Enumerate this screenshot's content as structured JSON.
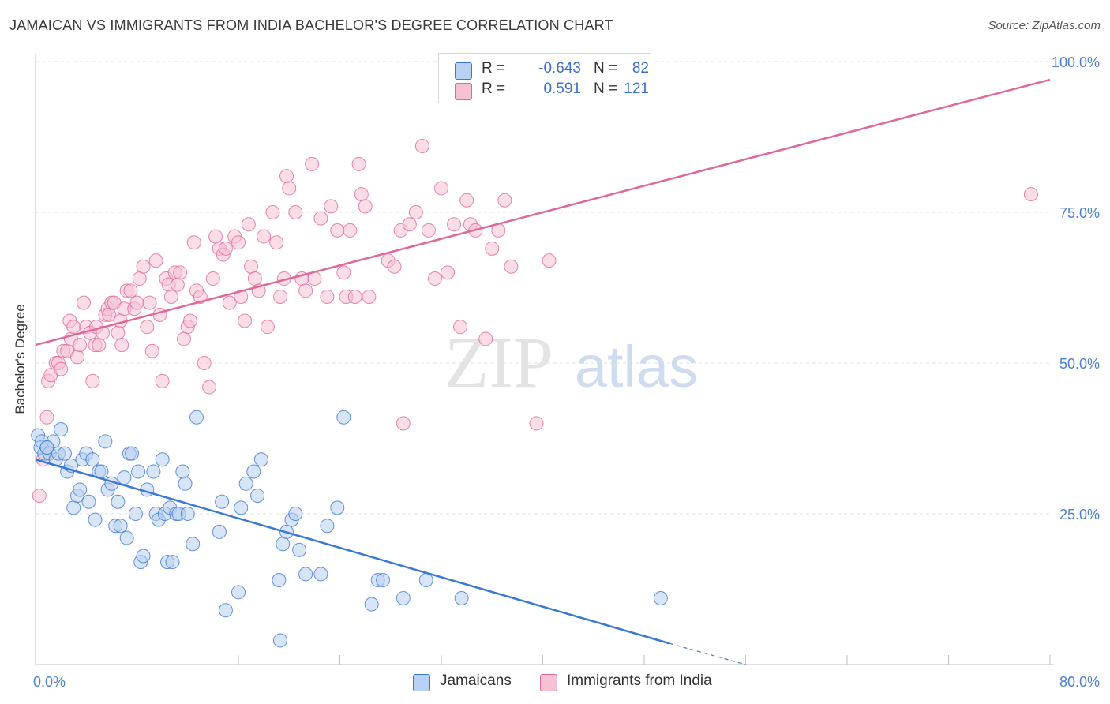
{
  "title": "JAMAICAN VS IMMIGRANTS FROM INDIA BACHELOR'S DEGREE CORRELATION CHART",
  "source": "Source: ZipAtlas.com",
  "watermark": {
    "zip": "ZIP",
    "atlas": "atlas"
  },
  "legend": {
    "rows": [
      {
        "r_label": "R =",
        "r_value": "-0.643",
        "n_label": "N =",
        "n_value": "82"
      },
      {
        "r_label": "R =",
        "r_value": "0.591",
        "n_label": "N =",
        "n_value": "121"
      }
    ]
  },
  "colors": {
    "blue": "#3a78d8",
    "blue_fill": "#b8d0f2",
    "pink": "#e0679a",
    "pink_fill": "#f7c1d4",
    "tick_text": "#4a7fd6",
    "grid": "#e2e2e2"
  },
  "chart_data": {
    "type": "scatter",
    "ylabel": "Bachelor's Degree",
    "x_tick_labels": [
      "0.0%",
      "80.0%"
    ],
    "y_tick_labels": [
      "25.0%",
      "50.0%",
      "75.0%",
      "100.0%"
    ],
    "y_ticks": [
      25,
      50,
      75,
      100
    ],
    "xlim": [
      0,
      80
    ],
    "ylim": [
      0,
      100
    ],
    "grid": true,
    "series": [
      {
        "name": "Jamaicans",
        "color": "#3a78d8",
        "R": -0.643,
        "N": 82,
        "trend": {
          "x0": 0,
          "y0": 34,
          "x1": 50,
          "y1": 3.5,
          "dash_to_x": 56,
          "dash_to_y": 0
        },
        "points": [
          [
            0.2,
            38
          ],
          [
            0.4,
            36
          ],
          [
            0.5,
            37
          ],
          [
            0.7,
            35
          ],
          [
            0.9,
            36
          ],
          [
            1.1,
            35
          ],
          [
            1.4,
            37
          ],
          [
            1.6,
            34
          ],
          [
            1.8,
            35
          ],
          [
            2.0,
            39
          ],
          [
            2.3,
            35
          ],
          [
            2.5,
            32
          ],
          [
            2.8,
            33
          ],
          [
            3.0,
            26
          ],
          [
            3.3,
            28
          ],
          [
            3.5,
            29
          ],
          [
            3.7,
            34
          ],
          [
            4.0,
            35
          ],
          [
            4.2,
            27
          ],
          [
            4.5,
            34
          ],
          [
            4.7,
            24
          ],
          [
            5.0,
            32
          ],
          [
            5.2,
            32
          ],
          [
            5.5,
            37
          ],
          [
            5.7,
            29
          ],
          [
            6.0,
            30
          ],
          [
            6.3,
            23
          ],
          [
            6.5,
            27
          ],
          [
            6.7,
            23
          ],
          [
            7.0,
            31
          ],
          [
            7.2,
            21
          ],
          [
            7.4,
            35
          ],
          [
            7.6,
            35
          ],
          [
            7.9,
            25
          ],
          [
            8.1,
            32
          ],
          [
            8.3,
            17
          ],
          [
            8.5,
            18
          ],
          [
            8.8,
            29
          ],
          [
            9.3,
            32
          ],
          [
            9.5,
            25
          ],
          [
            9.7,
            24
          ],
          [
            10.0,
            34
          ],
          [
            10.2,
            25
          ],
          [
            10.4,
            17
          ],
          [
            10.6,
            26
          ],
          [
            10.8,
            17
          ],
          [
            11.1,
            25
          ],
          [
            11.3,
            25
          ],
          [
            11.6,
            32
          ],
          [
            11.8,
            30
          ],
          [
            12.0,
            25
          ],
          [
            12.4,
            20
          ],
          [
            12.7,
            41
          ],
          [
            14.5,
            22
          ],
          [
            14.7,
            27
          ],
          [
            15.0,
            9
          ],
          [
            16.0,
            12
          ],
          [
            16.2,
            26
          ],
          [
            16.6,
            30
          ],
          [
            17.2,
            32
          ],
          [
            17.5,
            28
          ],
          [
            17.8,
            34
          ],
          [
            19.2,
            14
          ],
          [
            19.5,
            20
          ],
          [
            19.8,
            22
          ],
          [
            20.2,
            24
          ],
          [
            20.5,
            25
          ],
          [
            20.8,
            19
          ],
          [
            21.3,
            15
          ],
          [
            22.5,
            15
          ],
          [
            23.0,
            23
          ],
          [
            23.8,
            26
          ],
          [
            24.3,
            41
          ],
          [
            26.5,
            10
          ],
          [
            27.0,
            14
          ],
          [
            27.4,
            14
          ],
          [
            29.0,
            11
          ],
          [
            30.8,
            14
          ],
          [
            33.6,
            11
          ],
          [
            49.3,
            11
          ],
          [
            19.3,
            4
          ],
          [
            0.9,
            36
          ]
        ]
      },
      {
        "name": "Immigrants from India",
        "color": "#e0679a",
        "R": 0.591,
        "N": 121,
        "trend": {
          "x0": 0,
          "y0": 53,
          "x1": 80,
          "y1": 97
        },
        "points": [
          [
            0.3,
            28
          ],
          [
            0.6,
            34
          ],
          [
            0.9,
            41
          ],
          [
            1.0,
            47
          ],
          [
            1.2,
            48
          ],
          [
            1.6,
            50
          ],
          [
            1.8,
            50
          ],
          [
            2.0,
            49
          ],
          [
            2.2,
            52
          ],
          [
            2.5,
            52
          ],
          [
            2.7,
            57
          ],
          [
            2.8,
            54
          ],
          [
            3.0,
            56
          ],
          [
            3.3,
            51
          ],
          [
            3.5,
            53
          ],
          [
            3.8,
            60
          ],
          [
            4.0,
            56
          ],
          [
            4.3,
            55
          ],
          [
            4.5,
            47
          ],
          [
            4.7,
            53
          ],
          [
            4.8,
            56
          ],
          [
            5.0,
            53
          ],
          [
            5.3,
            55
          ],
          [
            5.5,
            58
          ],
          [
            5.7,
            59
          ],
          [
            5.8,
            58
          ],
          [
            6.0,
            60
          ],
          [
            6.2,
            60
          ],
          [
            6.5,
            55
          ],
          [
            6.7,
            57
          ],
          [
            6.8,
            53
          ],
          [
            7.0,
            59
          ],
          [
            7.2,
            62
          ],
          [
            7.5,
            62
          ],
          [
            7.8,
            59
          ],
          [
            8.0,
            60
          ],
          [
            8.2,
            64
          ],
          [
            8.5,
            66
          ],
          [
            8.8,
            56
          ],
          [
            9.0,
            60
          ],
          [
            9.2,
            52
          ],
          [
            9.5,
            67
          ],
          [
            9.8,
            58
          ],
          [
            10.0,
            47
          ],
          [
            10.3,
            64
          ],
          [
            10.5,
            63
          ],
          [
            10.7,
            61
          ],
          [
            11.0,
            65
          ],
          [
            11.2,
            63
          ],
          [
            11.4,
            65
          ],
          [
            11.7,
            54
          ],
          [
            12.0,
            56
          ],
          [
            12.2,
            57
          ],
          [
            12.5,
            70
          ],
          [
            12.7,
            62
          ],
          [
            13.0,
            61
          ],
          [
            13.3,
            50
          ],
          [
            13.7,
            46
          ],
          [
            14.0,
            64
          ],
          [
            14.2,
            71
          ],
          [
            14.5,
            69
          ],
          [
            14.8,
            68
          ],
          [
            15.0,
            69
          ],
          [
            15.3,
            60
          ],
          [
            15.7,
            71
          ],
          [
            16.0,
            70
          ],
          [
            16.2,
            61
          ],
          [
            16.5,
            57
          ],
          [
            16.8,
            73
          ],
          [
            17.0,
            66
          ],
          [
            17.3,
            64
          ],
          [
            17.6,
            62
          ],
          [
            18.0,
            71
          ],
          [
            18.3,
            56
          ],
          [
            18.7,
            75
          ],
          [
            19.0,
            70
          ],
          [
            19.3,
            61
          ],
          [
            19.6,
            64
          ],
          [
            19.8,
            81
          ],
          [
            20.0,
            79
          ],
          [
            20.5,
            75
          ],
          [
            21.0,
            64
          ],
          [
            21.3,
            62
          ],
          [
            21.8,
            83
          ],
          [
            22.0,
            64
          ],
          [
            22.5,
            74
          ],
          [
            23.0,
            61
          ],
          [
            23.3,
            76
          ],
          [
            23.8,
            72
          ],
          [
            24.3,
            65
          ],
          [
            24.5,
            61
          ],
          [
            24.8,
            72
          ],
          [
            25.2,
            61
          ],
          [
            25.5,
            83
          ],
          [
            25.7,
            78
          ],
          [
            26.0,
            76
          ],
          [
            26.3,
            61
          ],
          [
            27.8,
            67
          ],
          [
            28.3,
            66
          ],
          [
            29.0,
            40
          ],
          [
            28.8,
            72
          ],
          [
            29.5,
            73
          ],
          [
            30.0,
            75
          ],
          [
            30.5,
            86
          ],
          [
            31.0,
            72
          ],
          [
            31.5,
            64
          ],
          [
            32.0,
            79
          ],
          [
            32.5,
            65
          ],
          [
            33.0,
            73
          ],
          [
            33.5,
            56
          ],
          [
            34.0,
            77
          ],
          [
            34.3,
            73
          ],
          [
            34.7,
            72
          ],
          [
            35.5,
            54
          ],
          [
            36.0,
            69
          ],
          [
            36.5,
            72
          ],
          [
            37.0,
            77
          ],
          [
            37.5,
            66
          ],
          [
            39.5,
            40
          ],
          [
            40.5,
            67
          ],
          [
            78.5,
            78
          ]
        ]
      }
    ]
  }
}
